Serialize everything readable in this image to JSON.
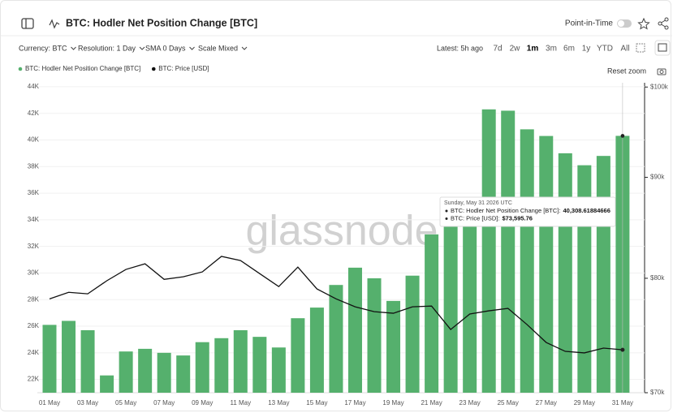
{
  "header": {
    "title": "BTC: Hodler Net Position Change [BTC]",
    "toggle_label": "Point-in-Time"
  },
  "toolbar": {
    "filters": [
      "Currency: BTC",
      "Resolution: 1 Day",
      "SMA 0 Days",
      "Scale Mixed"
    ],
    "latest": "Latest: 5h ago",
    "ranges": [
      "7d",
      "2w",
      "1m",
      "3m",
      "6m",
      "1y",
      "YTD",
      "All"
    ],
    "active_range_index": 2
  },
  "reset_zoom": "Reset zoom",
  "watermark": "glassnode",
  "chart_data": {
    "type": "bar_line",
    "categories": [
      "01 May",
      null,
      "03 May",
      null,
      "05 May",
      null,
      "07 May",
      null,
      "09 May",
      null,
      "11 May",
      null,
      "13 May",
      null,
      "15 May",
      null,
      "17 May",
      null,
      "19 May",
      null,
      "21 May",
      null,
      "23 May",
      null,
      "25 May",
      null,
      "27 May",
      null,
      "29 May",
      null,
      "31 May"
    ],
    "series": [
      {
        "name": "BTC: Hodler Net Position Change [BTC]",
        "type": "bar",
        "color": "#55b06d",
        "axis": "y",
        "values": [
          26100,
          26400,
          25700,
          22300,
          24100,
          24300,
          24000,
          23800,
          24800,
          25100,
          25700,
          25200,
          24400,
          26600,
          27400,
          29100,
          30400,
          29600,
          27900,
          29800,
          32900,
          34500,
          35200,
          42300,
          42200,
          40800,
          40300,
          39000,
          38100,
          38800,
          40308.61884666
        ]
      },
      {
        "name": "BTC: Price [USD]",
        "type": "line",
        "color": "#111111",
        "axis": "y2",
        "values": [
          78100,
          78700,
          78560,
          79770,
          80830,
          81360,
          79900,
          80140,
          80600,
          82070,
          81670,
          80440,
          79230,
          81050,
          79010,
          78100,
          77380,
          76940,
          76800,
          77380,
          77450,
          75360,
          76730,
          77020,
          77240,
          75790,
          74230,
          73460,
          73330,
          73740,
          73595.76
        ]
      }
    ],
    "ylim": [
      21000,
      44300
    ],
    "yticks": [
      {
        "value": 22000,
        "label": "22K"
      },
      {
        "value": 24000,
        "label": "24K"
      },
      {
        "value": 26000,
        "label": "26K"
      },
      {
        "value": 28000,
        "label": "28K"
      },
      {
        "value": 30000,
        "label": "30K"
      },
      {
        "value": 32000,
        "label": "32K"
      },
      {
        "value": 34000,
        "label": "34K"
      },
      {
        "value": 36000,
        "label": "36K"
      },
      {
        "value": 38000,
        "label": "38K"
      },
      {
        "value": 40000,
        "label": "40K"
      },
      {
        "value": 42000,
        "label": "42K"
      },
      {
        "value": 44000,
        "label": "44K"
      }
    ],
    "y2lim": [
      70000,
      100500
    ],
    "y2log": true,
    "y2ticks": [
      {
        "value": 70000,
        "label": "$70k"
      },
      {
        "value": 80000,
        "label": "$80k"
      },
      {
        "value": 90000,
        "label": "$90k"
      },
      {
        "value": 100000,
        "label": "$100k"
      }
    ],
    "grid": true,
    "legend": "top-left",
    "tooltip": {
      "date": "Sunday, May 31 2026 UTC",
      "items": [
        {
          "label": "BTC: Hodler Net Position Change [BTC]:",
          "value_label": "40,308.61884666"
        },
        {
          "label": "BTC: Price [USD]:",
          "value_label": "$73,595.76"
        }
      ]
    }
  }
}
